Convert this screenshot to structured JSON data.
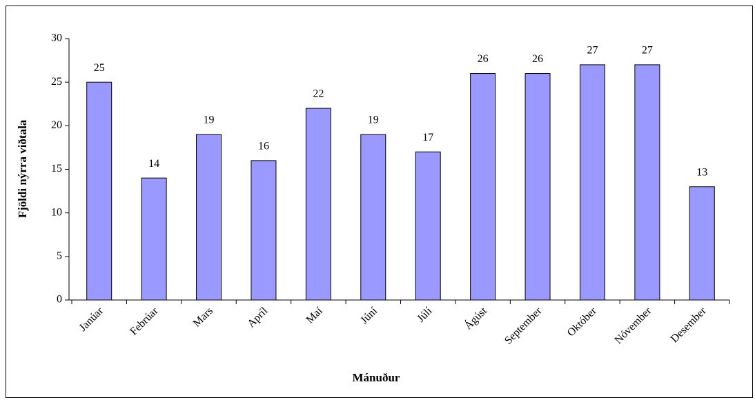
{
  "chart_data": {
    "type": "bar",
    "categories": [
      "Janúar",
      "Febrúar",
      "Mars",
      "Apríl",
      "Maí",
      "Júní",
      "Júlí",
      "Ágúst",
      "September",
      "Október",
      "Nóvember",
      "Desember"
    ],
    "values": [
      25,
      14,
      19,
      16,
      22,
      19,
      17,
      26,
      26,
      27,
      27,
      13
    ],
    "color": "#9999ff",
    "x_label": "Mánuður",
    "y_label": "Fjöldi nýrra viðtala",
    "ylim": [
      0,
      30
    ],
    "yticks": [
      0,
      5,
      10,
      15,
      20,
      25,
      30
    ],
    "grid": false
  }
}
